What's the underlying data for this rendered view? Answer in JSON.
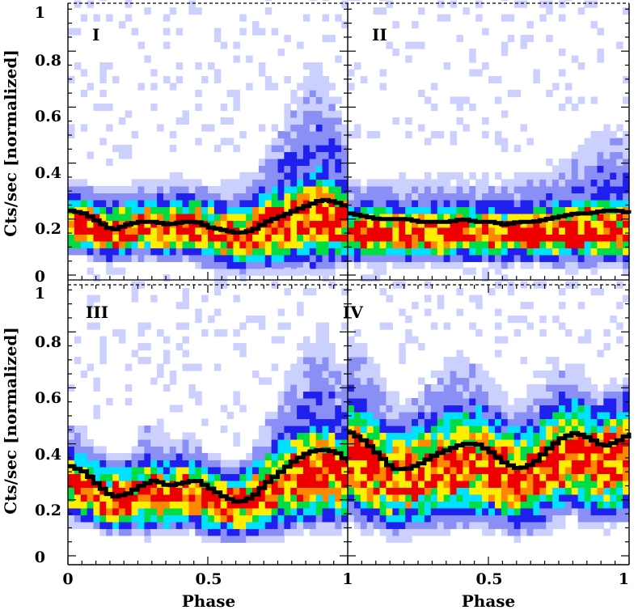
{
  "chart_data": {
    "type": "heatmap",
    "layout": "2x2 panels",
    "xlabel": "Phase",
    "ylabel": "Cts/sec [normalized]",
    "xlim": [
      0,
      1
    ],
    "ylim": [
      0,
      1
    ],
    "x_tick_labels": [
      "0",
      "0.5",
      "1",
      "0.5",
      "1"
    ],
    "y_tick_labels": [
      "0",
      "0.2",
      "0.4",
      "0.6",
      "0.8",
      "1"
    ],
    "colormap": [
      "#ffffff",
      "#ccd0ff",
      "#2020ee",
      "#00e0ff",
      "#00dd44",
      "#ffee00",
      "#ff8800",
      "#ee0000"
    ],
    "line_color": "#000000",
    "panels": [
      {
        "label": "I",
        "mean_curve": {
          "x": [
            0,
            0.05,
            0.1,
            0.15,
            0.2,
            0.25,
            0.3,
            0.35,
            0.4,
            0.45,
            0.5,
            0.55,
            0.6,
            0.65,
            0.7,
            0.75,
            0.8,
            0.85,
            0.9,
            0.95,
            1
          ],
          "y": [
            0.23,
            0.22,
            0.19,
            0.16,
            0.18,
            0.19,
            0.19,
            0.18,
            0.19,
            0.19,
            0.17,
            0.16,
            0.15,
            0.16,
            0.19,
            0.21,
            0.23,
            0.25,
            0.27,
            0.26,
            0.24
          ]
        },
        "density": {
          "center": [
            0.18,
            0.18,
            0.16,
            0.15,
            0.16,
            0.17,
            0.17,
            0.16,
            0.17,
            0.17,
            0.15,
            0.14,
            0.13,
            0.14,
            0.16,
            0.17,
            0.18,
            0.19,
            0.2,
            0.19,
            0.18
          ],
          "width": [
            0.1,
            0.1,
            0.1,
            0.1,
            0.1,
            0.1,
            0.1,
            0.1,
            0.1,
            0.11,
            0.11,
            0.11,
            0.11,
            0.12,
            0.13,
            0.14,
            0.15,
            0.16,
            0.17,
            0.15,
            0.13
          ],
          "tail": [
            0.35,
            0.35,
            0.33,
            0.32,
            0.33,
            0.34,
            0.35,
            0.36,
            0.37,
            0.37,
            0.34,
            0.33,
            0.34,
            0.38,
            0.45,
            0.55,
            0.65,
            0.75,
            0.8,
            0.7,
            0.5
          ]
        }
      },
      {
        "label": "II",
        "mean_curve": {
          "x": [
            0,
            0.05,
            0.1,
            0.15,
            0.2,
            0.25,
            0.3,
            0.35,
            0.4,
            0.45,
            0.5,
            0.55,
            0.6,
            0.65,
            0.7,
            0.75,
            0.8,
            0.85,
            0.9,
            0.95,
            1
          ],
          "y": [
            0.22,
            0.21,
            0.2,
            0.2,
            0.2,
            0.19,
            0.19,
            0.19,
            0.2,
            0.19,
            0.19,
            0.18,
            0.19,
            0.19,
            0.2,
            0.21,
            0.22,
            0.22,
            0.23,
            0.23,
            0.22
          ]
        },
        "density": {
          "center": [
            0.16,
            0.15,
            0.15,
            0.15,
            0.15,
            0.15,
            0.15,
            0.14,
            0.15,
            0.15,
            0.15,
            0.14,
            0.15,
            0.15,
            0.15,
            0.15,
            0.16,
            0.16,
            0.16,
            0.16,
            0.16
          ],
          "width": [
            0.1,
            0.1,
            0.1,
            0.1,
            0.1,
            0.1,
            0.1,
            0.1,
            0.1,
            0.1,
            0.1,
            0.1,
            0.1,
            0.1,
            0.1,
            0.11,
            0.11,
            0.12,
            0.12,
            0.12,
            0.12
          ],
          "tail": [
            0.35,
            0.35,
            0.35,
            0.35,
            0.36,
            0.36,
            0.36,
            0.36,
            0.36,
            0.36,
            0.36,
            0.36,
            0.37,
            0.38,
            0.4,
            0.42,
            0.45,
            0.5,
            0.55,
            0.55,
            0.5
          ]
        }
      },
      {
        "label": "III",
        "mean_curve": {
          "x": [
            0,
            0.05,
            0.1,
            0.15,
            0.2,
            0.25,
            0.3,
            0.35,
            0.4,
            0.45,
            0.5,
            0.55,
            0.6,
            0.65,
            0.7,
            0.75,
            0.8,
            0.85,
            0.9,
            0.95,
            1
          ],
          "y": [
            0.32,
            0.3,
            0.25,
            0.21,
            0.22,
            0.25,
            0.27,
            0.25,
            0.26,
            0.27,
            0.24,
            0.21,
            0.19,
            0.21,
            0.26,
            0.3,
            0.34,
            0.37,
            0.38,
            0.37,
            0.33
          ]
        },
        "density": {
          "center": [
            0.26,
            0.24,
            0.22,
            0.2,
            0.2,
            0.21,
            0.22,
            0.21,
            0.22,
            0.22,
            0.2,
            0.18,
            0.17,
            0.19,
            0.22,
            0.25,
            0.27,
            0.29,
            0.3,
            0.29,
            0.27
          ],
          "width": [
            0.12,
            0.12,
            0.12,
            0.11,
            0.11,
            0.12,
            0.13,
            0.12,
            0.12,
            0.12,
            0.12,
            0.11,
            0.11,
            0.12,
            0.14,
            0.16,
            0.17,
            0.18,
            0.19,
            0.18,
            0.16
          ],
          "tail": [
            0.5,
            0.48,
            0.4,
            0.33,
            0.35,
            0.45,
            0.52,
            0.45,
            0.44,
            0.45,
            0.38,
            0.32,
            0.3,
            0.38,
            0.5,
            0.6,
            0.7,
            0.8,
            0.85,
            0.8,
            0.65
          ]
        }
      },
      {
        "label": "IV",
        "mean_curve": {
          "x": [
            0,
            0.05,
            0.1,
            0.15,
            0.2,
            0.25,
            0.3,
            0.35,
            0.4,
            0.45,
            0.5,
            0.55,
            0.6,
            0.65,
            0.7,
            0.75,
            0.8,
            0.85,
            0.9,
            0.95,
            1
          ],
          "y": [
            0.44,
            0.41,
            0.36,
            0.31,
            0.31,
            0.33,
            0.36,
            0.38,
            0.4,
            0.4,
            0.37,
            0.33,
            0.31,
            0.33,
            0.38,
            0.42,
            0.44,
            0.42,
            0.39,
            0.41,
            0.44
          ]
        },
        "density": {
          "center": [
            0.35,
            0.33,
            0.3,
            0.27,
            0.27,
            0.28,
            0.3,
            0.31,
            0.33,
            0.33,
            0.31,
            0.28,
            0.27,
            0.28,
            0.31,
            0.34,
            0.36,
            0.34,
            0.32,
            0.33,
            0.35
          ],
          "width": [
            0.2,
            0.2,
            0.19,
            0.18,
            0.18,
            0.18,
            0.19,
            0.2,
            0.2,
            0.2,
            0.19,
            0.18,
            0.18,
            0.18,
            0.19,
            0.2,
            0.2,
            0.2,
            0.19,
            0.2,
            0.2
          ],
          "tail": [
            0.85,
            0.8,
            0.7,
            0.6,
            0.58,
            0.62,
            0.68,
            0.72,
            0.75,
            0.74,
            0.66,
            0.6,
            0.58,
            0.62,
            0.7,
            0.72,
            0.7,
            0.66,
            0.6,
            0.62,
            0.65
          ]
        }
      }
    ]
  }
}
